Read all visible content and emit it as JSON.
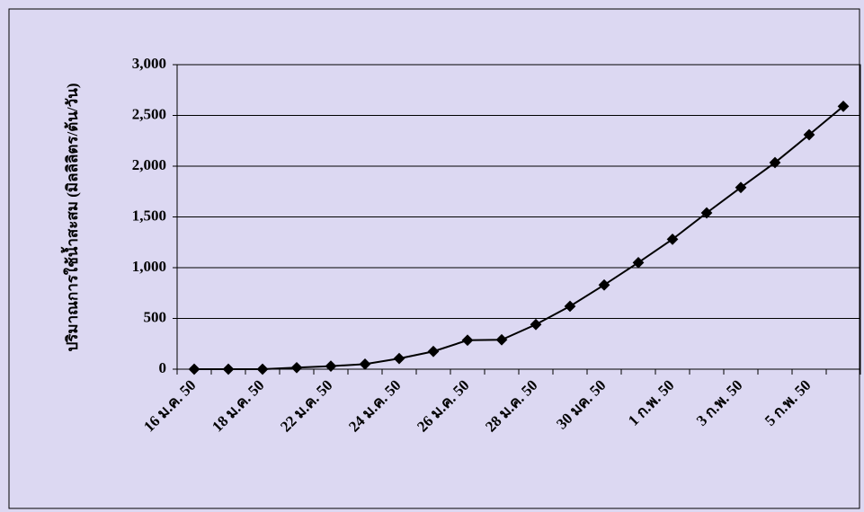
{
  "chart_data": {
    "type": "line",
    "y_label": "ปริมาณการใช้น้ำสะสม (มิลลิลิตร/ต้น/วัน)",
    "categories": [
      "16 ม.ค. 50",
      null,
      "18 ม.ค. 50",
      null,
      "22 ม.ค. 50",
      null,
      "24 ม.ค. 50",
      null,
      "26 ม.ค. 50",
      null,
      "28 ม.ค. 50",
      null,
      "30 มค. 50",
      null,
      "1 ก.พ. 50",
      null,
      "3 ก.พ. 50",
      null,
      "5 ก.พ. 50",
      null
    ],
    "series": [
      {
        "color": "#000000",
        "values": [
          0,
          0,
          0,
          15,
          30,
          50,
          105,
          175,
          285,
          290,
          440,
          620,
          830,
          1050,
          1280,
          1540,
          1790,
          2035,
          2310,
          2590
        ]
      }
    ],
    "ylim": [
      0,
      3000
    ],
    "yticks": [
      0,
      500,
      {
        "value": 1000,
        "label": "1,000"
      },
      {
        "value": 1500,
        "label": "1,500"
      },
      {
        "value": 2000,
        "label": "2,000"
      },
      {
        "value": 2500,
        "label": "2,500"
      },
      {
        "value": 3000,
        "label": "3,000"
      }
    ],
    "grid": true
  }
}
